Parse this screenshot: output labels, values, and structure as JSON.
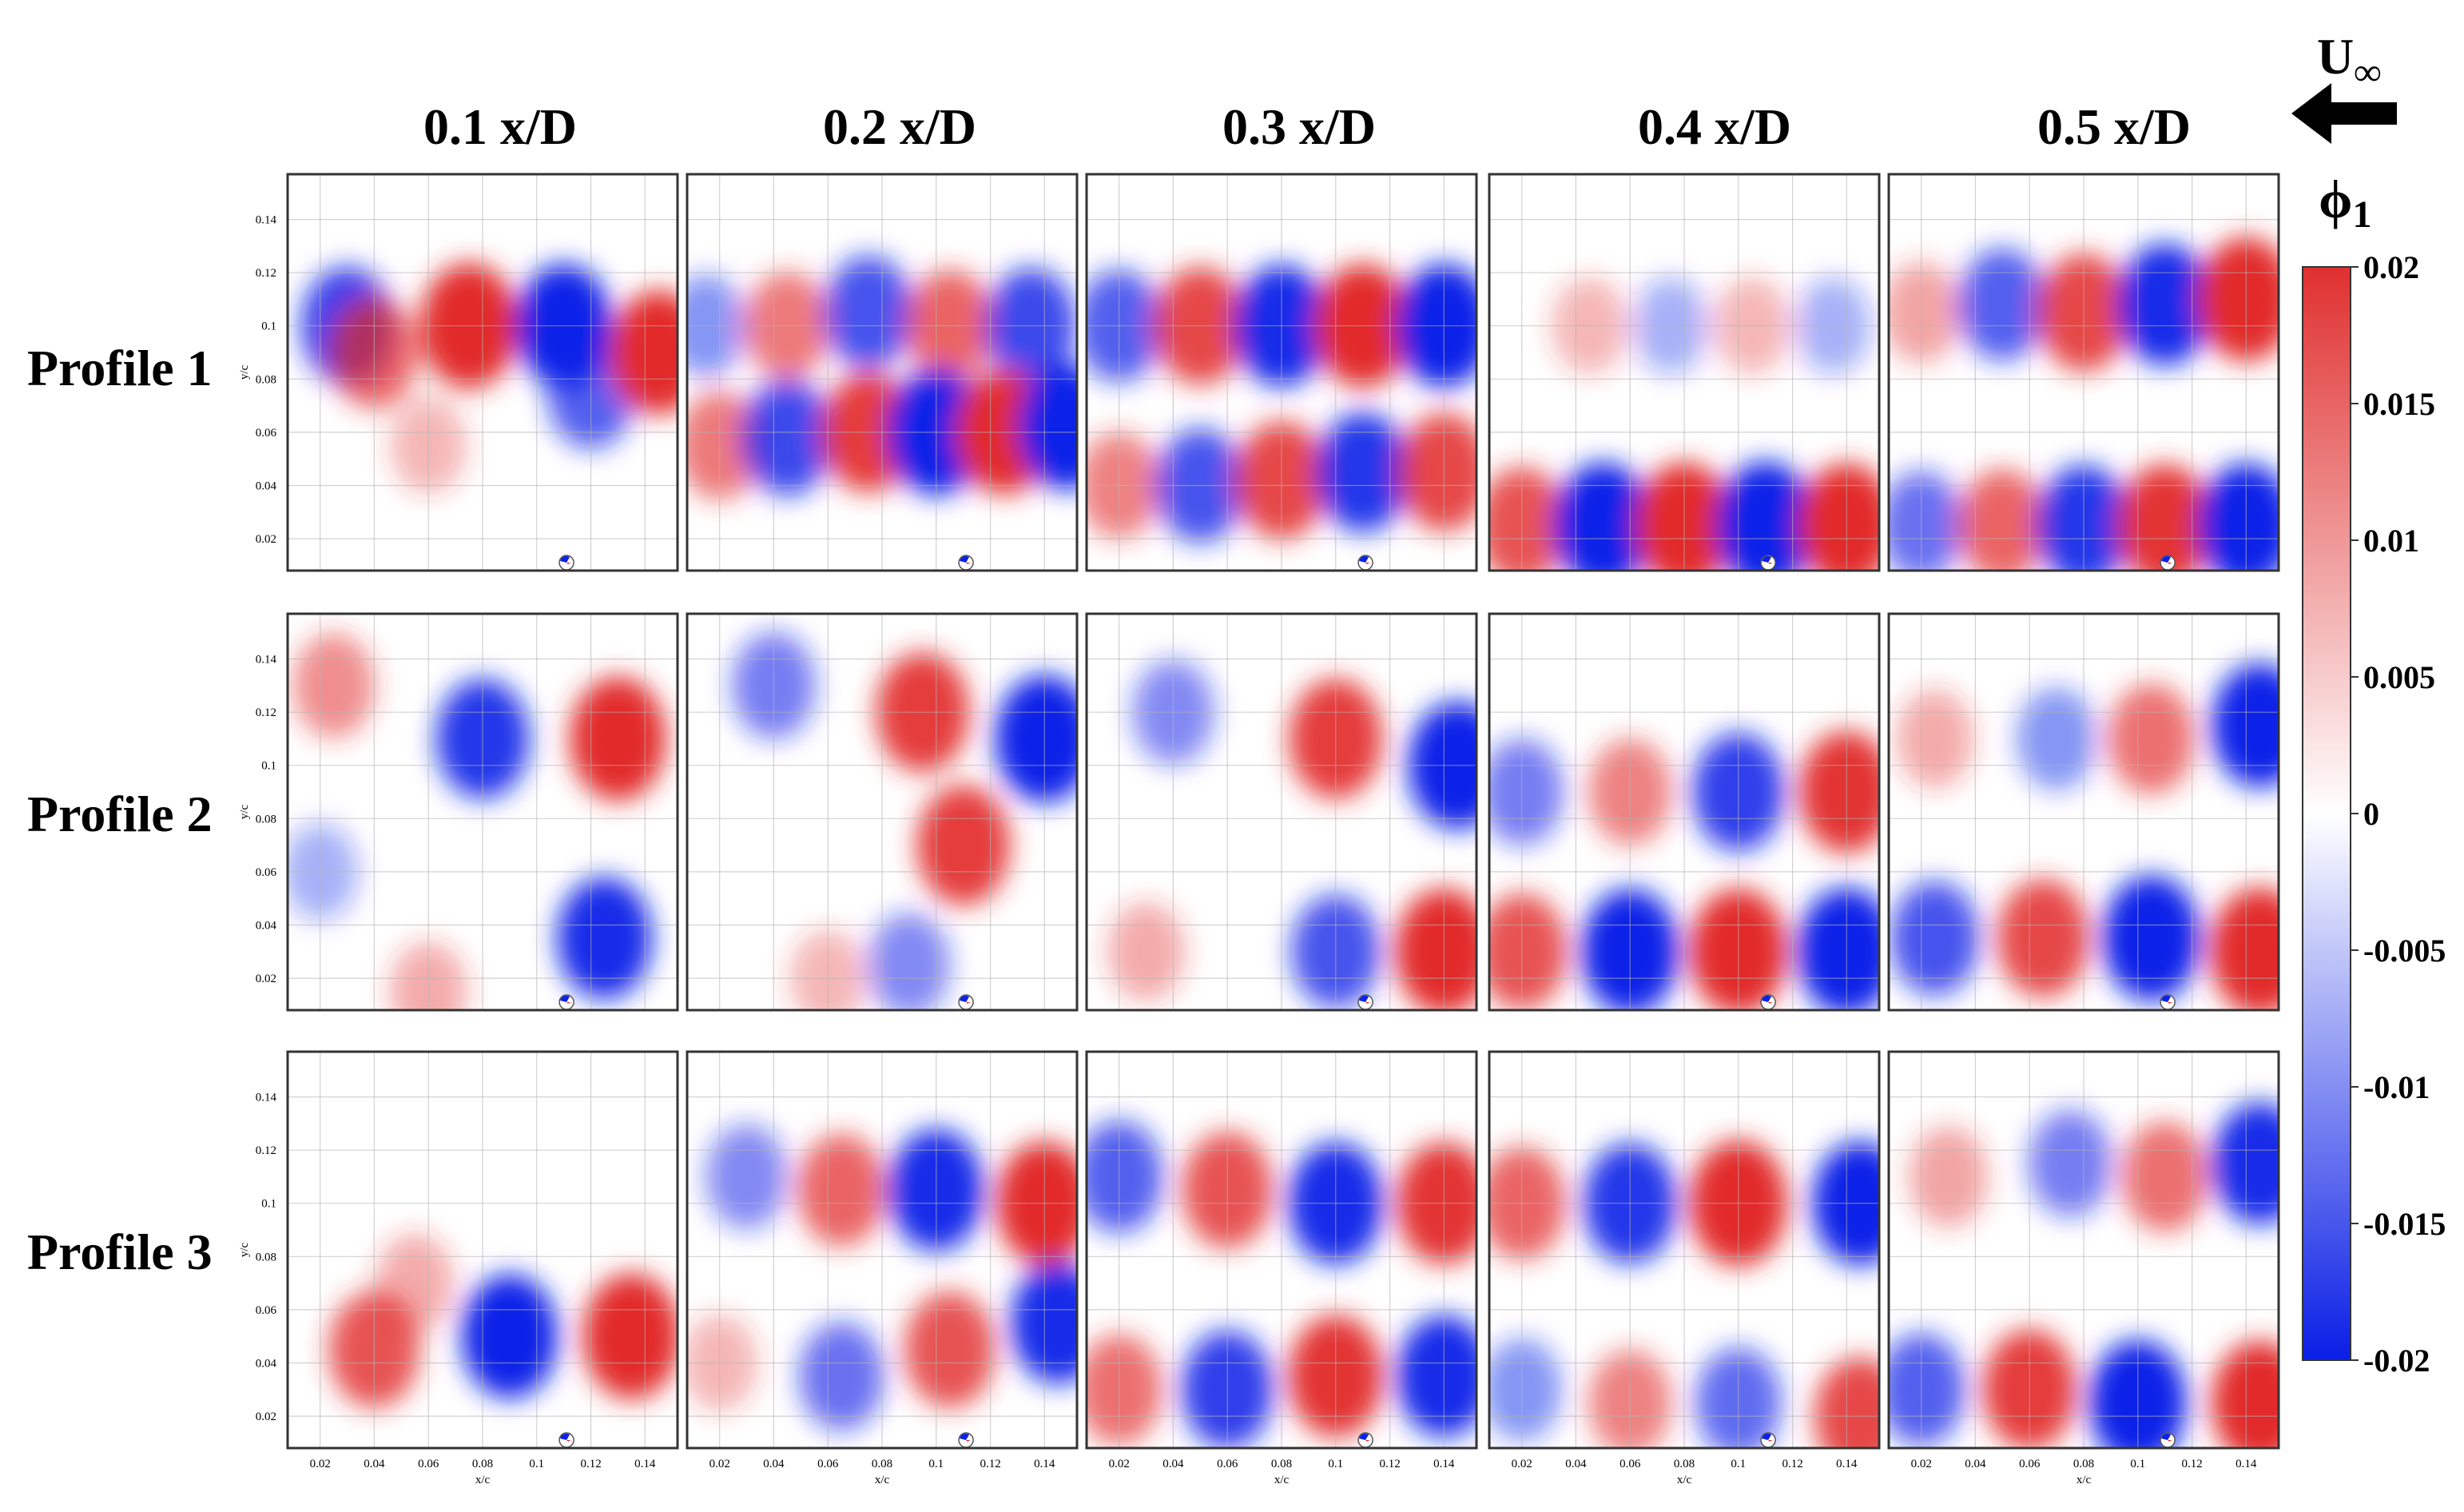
{
  "columns": [
    "0.1 x/D",
    "0.2 x/D",
    "0.3 x/D",
    "0.4 x/D",
    "0.5 x/D"
  ],
  "rows": [
    "Profile 1",
    "Profile 2",
    "Profile 3"
  ],
  "flow_label_main": "U",
  "flow_label_sub": "∞",
  "mode_label_main": "ϕ",
  "mode_label_sub": "1",
  "axis": {
    "xlabel": "x/c",
    "ylabel": "y/c",
    "xticks": [
      "0.02",
      "0.04",
      "0.06",
      "0.08",
      "0.1",
      "0.12",
      "0.14"
    ],
    "yticks": [
      "0.14",
      "0.12",
      "0.1",
      "0.08",
      "0.06",
      "0.04",
      "0.02"
    ]
  },
  "colorbar": {
    "ticks": [
      "0.02",
      "0.015",
      "0.01",
      "0.005",
      "0",
      "-0.005",
      "-0.01",
      "-0.015",
      "-0.02"
    ],
    "max_color": "#e03030",
    "mid_color": "#ffffff",
    "min_color": "#0a1ee6"
  },
  "colors": {
    "positive": "#e22a2a",
    "negative": "#0d22e8",
    "grid": "#b4b4b4",
    "frame": "#333333"
  },
  "panels": [
    [
      {
        "blobs": [
          [
            0.03,
            0.1,
            -0.015
          ],
          [
            0.04,
            0.09,
            0.012
          ],
          [
            0.075,
            0.1,
            0.019
          ],
          [
            0.11,
            0.1,
            -0.018
          ],
          [
            0.12,
            0.075,
            -0.012
          ],
          [
            0.145,
            0.09,
            0.018
          ],
          [
            0.06,
            0.055,
            0.004
          ]
        ]
      },
      {
        "blobs": [
          [
            0.015,
            0.1,
            -0.007
          ],
          [
            0.045,
            0.1,
            0.01
          ],
          [
            0.075,
            0.105,
            -0.013
          ],
          [
            0.105,
            0.1,
            0.012
          ],
          [
            0.135,
            0.1,
            -0.014
          ],
          [
            0.02,
            0.055,
            0.01
          ],
          [
            0.045,
            0.058,
            -0.014
          ],
          [
            0.075,
            0.06,
            0.016
          ],
          [
            0.1,
            0.06,
            -0.019
          ],
          [
            0.125,
            0.06,
            0.018
          ],
          [
            0.148,
            0.062,
            -0.019
          ]
        ]
      },
      {
        "blobs": [
          [
            0.02,
            0.1,
            -0.012
          ],
          [
            0.05,
            0.1,
            0.015
          ],
          [
            0.08,
            0.1,
            -0.017
          ],
          [
            0.11,
            0.1,
            0.018
          ],
          [
            0.14,
            0.1,
            -0.018
          ],
          [
            0.02,
            0.04,
            0.009
          ],
          [
            0.05,
            0.04,
            -0.013
          ],
          [
            0.08,
            0.042,
            0.015
          ],
          [
            0.11,
            0.045,
            -0.016
          ],
          [
            0.14,
            0.045,
            0.015
          ]
        ]
      },
      {
        "blobs": [
          [
            0.045,
            0.1,
            0.004
          ],
          [
            0.075,
            0.1,
            -0.004
          ],
          [
            0.105,
            0.1,
            0.004
          ],
          [
            0.135,
            0.1,
            -0.004
          ],
          [
            0.02,
            0.025,
            0.014
          ],
          [
            0.05,
            0.025,
            -0.019
          ],
          [
            0.08,
            0.025,
            0.019
          ],
          [
            0.11,
            0.025,
            -0.02
          ],
          [
            0.14,
            0.025,
            0.018
          ]
        ]
      },
      {
        "blobs": [
          [
            0.02,
            0.105,
            0.006
          ],
          [
            0.05,
            0.108,
            -0.012
          ],
          [
            0.08,
            0.105,
            0.015
          ],
          [
            0.11,
            0.108,
            -0.017
          ],
          [
            0.14,
            0.11,
            0.018
          ],
          [
            0.02,
            0.025,
            -0.01
          ],
          [
            0.05,
            0.025,
            0.012
          ],
          [
            0.08,
            0.025,
            -0.016
          ],
          [
            0.11,
            0.025,
            0.017
          ],
          [
            0.14,
            0.025,
            -0.018
          ]
        ]
      }
    ],
    [
      {
        "blobs": [
          [
            0.025,
            0.13,
            0.008
          ],
          [
            0.08,
            0.11,
            -0.016
          ],
          [
            0.13,
            0.11,
            0.018
          ],
          [
            0.125,
            0.035,
            -0.017
          ],
          [
            0.06,
            0.015,
            0.005
          ],
          [
            0.02,
            0.06,
            -0.004
          ]
        ]
      },
      {
        "blobs": [
          [
            0.04,
            0.13,
            -0.009
          ],
          [
            0.095,
            0.12,
            0.016
          ],
          [
            0.14,
            0.11,
            -0.02
          ],
          [
            0.11,
            0.07,
            0.016
          ],
          [
            0.09,
            0.025,
            -0.008
          ],
          [
            0.06,
            0.02,
            0.004
          ]
        ]
      },
      {
        "blobs": [
          [
            0.04,
            0.12,
            -0.008
          ],
          [
            0.1,
            0.11,
            0.016
          ],
          [
            0.145,
            0.1,
            -0.02
          ],
          [
            0.1,
            0.03,
            -0.013
          ],
          [
            0.14,
            0.03,
            0.019
          ],
          [
            0.03,
            0.03,
            0.005
          ]
        ]
      },
      {
        "blobs": [
          [
            0.02,
            0.09,
            -0.009
          ],
          [
            0.06,
            0.09,
            0.009
          ],
          [
            0.1,
            0.09,
            -0.015
          ],
          [
            0.14,
            0.09,
            0.017
          ],
          [
            0.02,
            0.03,
            0.014
          ],
          [
            0.06,
            0.03,
            -0.019
          ],
          [
            0.1,
            0.03,
            0.019
          ],
          [
            0.14,
            0.03,
            -0.02
          ]
        ]
      },
      {
        "blobs": [
          [
            0.025,
            0.11,
            0.005
          ],
          [
            0.07,
            0.11,
            -0.007
          ],
          [
            0.105,
            0.11,
            0.011
          ],
          [
            0.145,
            0.115,
            -0.018
          ],
          [
            0.025,
            0.035,
            -0.013
          ],
          [
            0.065,
            0.035,
            0.015
          ],
          [
            0.105,
            0.035,
            -0.019
          ],
          [
            0.145,
            0.03,
            0.02
          ]
        ]
      }
    ],
    [
      {
        "blobs": [
          [
            0.04,
            0.045,
            0.014
          ],
          [
            0.055,
            0.07,
            0.005
          ],
          [
            0.09,
            0.05,
            -0.018
          ],
          [
            0.135,
            0.05,
            0.019
          ]
        ]
      },
      {
        "blobs": [
          [
            0.03,
            0.11,
            -0.008
          ],
          [
            0.065,
            0.105,
            0.012
          ],
          [
            0.1,
            0.105,
            -0.017
          ],
          [
            0.14,
            0.1,
            0.018
          ],
          [
            0.02,
            0.04,
            0.004
          ],
          [
            0.065,
            0.035,
            -0.01
          ],
          [
            0.105,
            0.045,
            0.014
          ],
          [
            0.145,
            0.055,
            -0.017
          ]
        ]
      },
      {
        "blobs": [
          [
            0.02,
            0.11,
            -0.012
          ],
          [
            0.06,
            0.105,
            0.014
          ],
          [
            0.1,
            0.1,
            -0.017
          ],
          [
            0.14,
            0.1,
            0.017
          ],
          [
            0.02,
            0.03,
            0.011
          ],
          [
            0.06,
            0.03,
            -0.015
          ],
          [
            0.1,
            0.035,
            0.017
          ],
          [
            0.14,
            0.035,
            -0.017
          ]
        ]
      },
      {
        "blobs": [
          [
            0.02,
            0.1,
            0.012
          ],
          [
            0.06,
            0.1,
            -0.016
          ],
          [
            0.1,
            0.1,
            0.019
          ],
          [
            0.145,
            0.1,
            -0.018
          ],
          [
            0.02,
            0.03,
            -0.007
          ],
          [
            0.06,
            0.025,
            0.009
          ],
          [
            0.1,
            0.025,
            -0.011
          ],
          [
            0.145,
            0.02,
            0.015
          ]
        ]
      },
      {
        "blobs": [
          [
            0.03,
            0.11,
            0.006
          ],
          [
            0.075,
            0.115,
            -0.009
          ],
          [
            0.11,
            0.11,
            0.011
          ],
          [
            0.145,
            0.115,
            -0.017
          ],
          [
            0.02,
            0.03,
            -0.012
          ],
          [
            0.06,
            0.03,
            0.016
          ],
          [
            0.1,
            0.025,
            -0.019
          ],
          [
            0.145,
            0.025,
            0.018
          ]
        ]
      }
    ]
  ]
}
